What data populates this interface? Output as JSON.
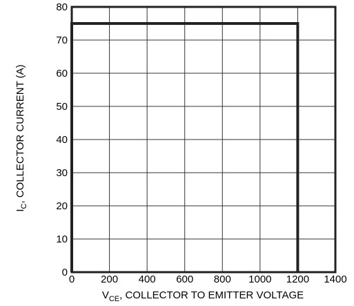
{
  "chart_data": {
    "type": "line",
    "title": "",
    "xlabel": "V_CE, COLLECTOR TO EMITTER VOLTAGE",
    "ylabel": "I_C, COLLECTOR CURRENT (A)",
    "xlabel_parts": {
      "main": "V",
      "sub": "CE",
      "rest": ", COLLECTOR TO EMITTER VOLTAGE"
    },
    "ylabel_parts": {
      "main": "I",
      "sub": "C",
      "rest": ", COLLECTOR  CURRENT (A)"
    },
    "xlim": [
      0,
      1400
    ],
    "ylim": [
      0,
      80
    ],
    "xticks": [
      0,
      200,
      400,
      600,
      800,
      1000,
      1200,
      1400
    ],
    "yticks": [
      0,
      10,
      20,
      30,
      40,
      50,
      60,
      70,
      80
    ],
    "grid": true,
    "series": [
      {
        "x": [
          0,
          0,
          1200,
          1200
        ],
        "y": [
          0,
          75,
          75,
          0
        ]
      }
    ]
  }
}
